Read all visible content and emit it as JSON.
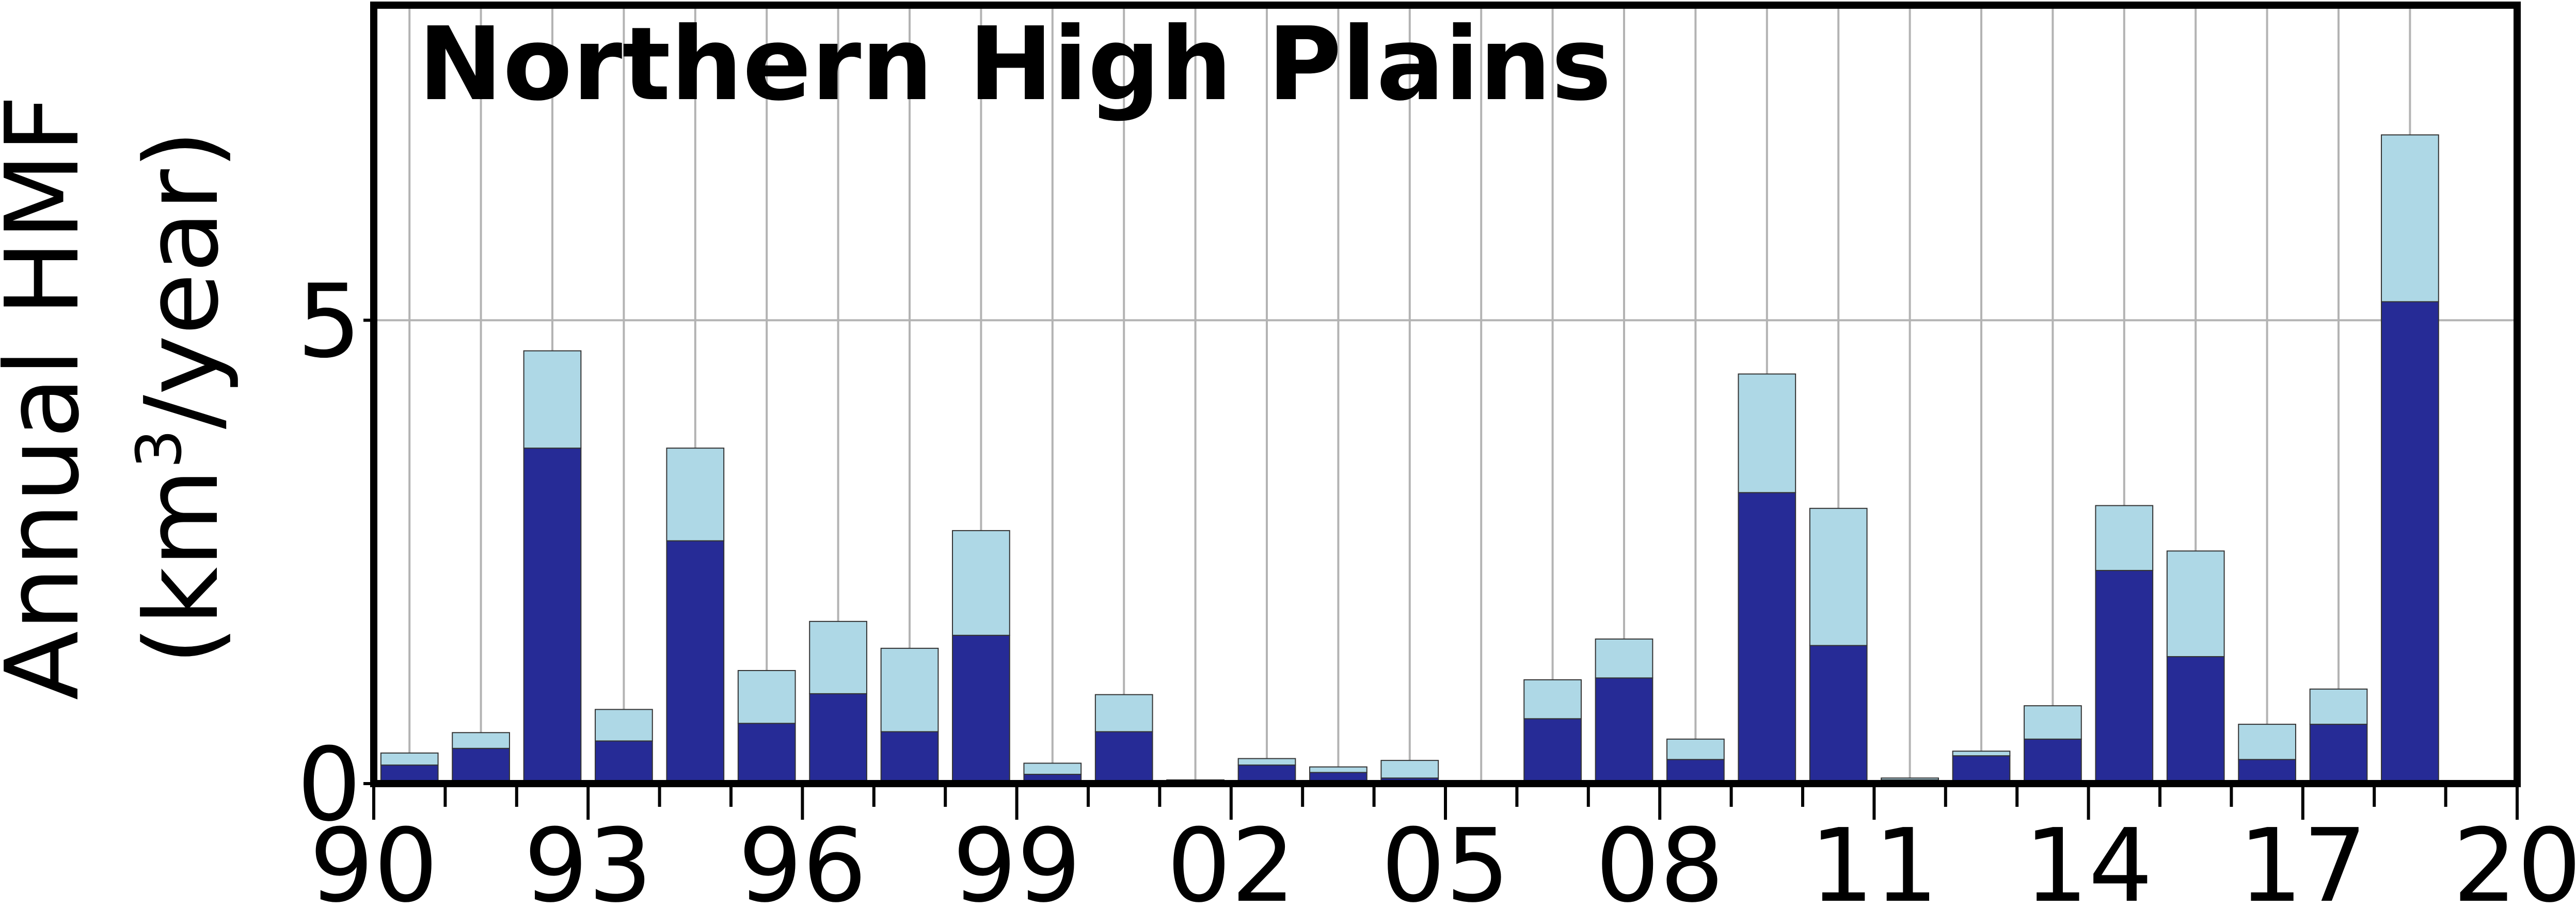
{
  "chart_data": {
    "type": "bar",
    "stacked": true,
    "title": "Northern High Plains",
    "ylabel_line1": "Annual HMF",
    "ylabel_line2_pre": "(km",
    "ylabel_line2_sup": "3",
    "ylabel_line2_post": "/year)",
    "xlabel": "",
    "xlim": [
      1990,
      2020
    ],
    "ylim": [
      0,
      8.4
    ],
    "grid": true,
    "xticks": [
      {
        "value": 1990,
        "label": "90"
      },
      {
        "value": 1993,
        "label": "93"
      },
      {
        "value": 1996,
        "label": "96"
      },
      {
        "value": 1999,
        "label": "99"
      },
      {
        "value": 2002,
        "label": "02"
      },
      {
        "value": 2005,
        "label": "05"
      },
      {
        "value": 2008,
        "label": "08"
      },
      {
        "value": 2011,
        "label": "11"
      },
      {
        "value": 2014,
        "label": "14"
      },
      {
        "value": 2017,
        "label": "17"
      },
      {
        "value": 2020,
        "label": "20"
      }
    ],
    "yticks": [
      {
        "value": 0,
        "label": "0"
      },
      {
        "value": 5,
        "label": "5"
      }
    ],
    "x": [
      1991,
      1992,
      1993,
      1994,
      1995,
      1996,
      1997,
      1998,
      1999,
      2000,
      2001,
      2002,
      2003,
      2004,
      2005,
      2006,
      2007,
      2008,
      2009,
      2010,
      2011,
      2012,
      2013,
      2014,
      2015,
      2016,
      2017,
      2018,
      2019
    ],
    "series": [
      {
        "color": "#262b96",
        "values": [
          0.2,
          0.38,
          3.62,
          0.46,
          2.62,
          0.65,
          0.97,
          0.56,
          1.6,
          0.1,
          0.56,
          0.02,
          0.2,
          0.12,
          0.06,
          0.0,
          0.7,
          1.14,
          0.26,
          3.14,
          1.49,
          0.04,
          0.3,
          0.48,
          2.3,
          1.37,
          0.26,
          0.64,
          5.2
        ]
      },
      {
        "color": "#aed8e6",
        "values": [
          0.13,
          0.17,
          1.05,
          0.34,
          1.0,
          0.57,
          0.78,
          0.9,
          1.13,
          0.12,
          0.4,
          0.02,
          0.07,
          0.06,
          0.19,
          0.0,
          0.42,
          0.42,
          0.22,
          1.28,
          1.48,
          0.02,
          0.05,
          0.36,
          0.7,
          1.14,
          0.38,
          0.38,
          1.8
        ]
      }
    ]
  }
}
